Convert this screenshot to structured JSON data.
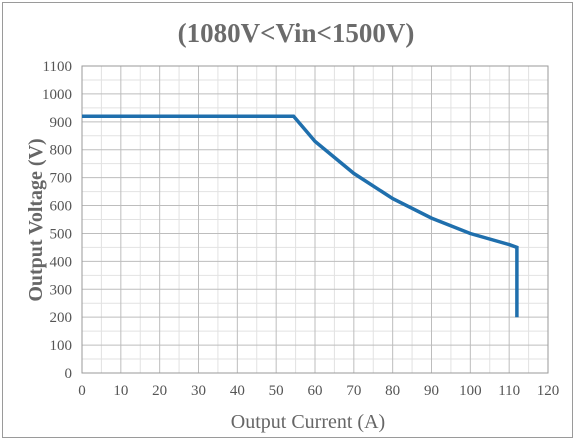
{
  "chart_data": {
    "type": "line",
    "title": "(1080V<Vin<1500V)",
    "xlabel": "Output Current (A)",
    "ylabel": "Output Voltage (V)",
    "xlim": [
      0,
      120
    ],
    "ylim": [
      0,
      1100
    ],
    "xticks": [
      0,
      10,
      20,
      30,
      40,
      50,
      60,
      70,
      80,
      90,
      100,
      110,
      120
    ],
    "yticks": [
      0,
      100,
      200,
      300,
      400,
      500,
      600,
      700,
      800,
      900,
      1000,
      1100
    ],
    "x_minor_step": 5,
    "y_minor_step": 50,
    "grid": true,
    "series": [
      {
        "color": "#1f6fad",
        "x": [
          0,
          54.5,
          60,
          70,
          80,
          90,
          100,
          110,
          112,
          112
        ],
        "y": [
          920,
          920,
          830,
          715,
          625,
          555,
          500,
          460,
          450,
          200
        ]
      }
    ]
  }
}
